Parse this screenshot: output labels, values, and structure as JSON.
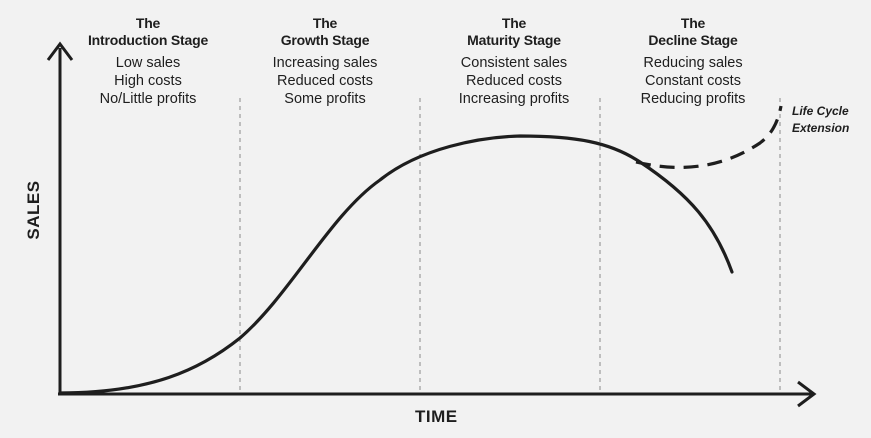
{
  "stages": [
    {
      "title_1": "The",
      "title_2": "Introduction Stage",
      "lines": [
        "Low sales",
        "High costs",
        "No/Little profits"
      ]
    },
    {
      "title_1": "The",
      "title_2": "Growth Stage",
      "lines": [
        "Increasing sales",
        "Reduced costs",
        "Some profits"
      ]
    },
    {
      "title_1": "The",
      "title_2": "Maturity Stage",
      "lines": [
        "Consistent sales",
        "Reduced costs",
        "Increasing profits"
      ]
    },
    {
      "title_1": "The",
      "title_2": "Decline Stage",
      "lines": [
        "Reducing sales",
        "Constant costs",
        "Reducing profits"
      ]
    }
  ],
  "axes": {
    "x_label": "TIME",
    "y_label": "SALES"
  },
  "extension": {
    "line_1": "Life Cycle",
    "line_2": "Extension"
  }
}
